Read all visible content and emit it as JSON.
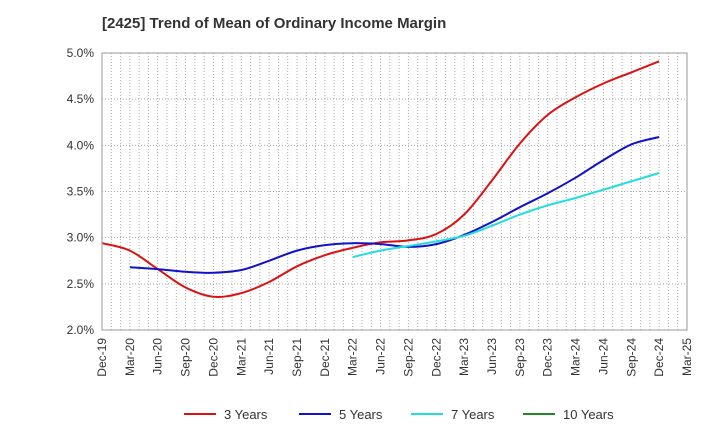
{
  "chart_data": {
    "type": "line",
    "title": "[2425]  Trend of Mean of Ordinary Income Margin",
    "xlabel": "",
    "ylabel": "",
    "categories": [
      "Dec-19",
      "Mar-20",
      "Jun-20",
      "Sep-20",
      "Dec-20",
      "Mar-21",
      "Jun-21",
      "Sep-21",
      "Dec-21",
      "Mar-22",
      "Jun-22",
      "Sep-22",
      "Dec-22",
      "Mar-23",
      "Jun-23",
      "Sep-23",
      "Dec-23",
      "Mar-24",
      "Jun-24",
      "Sep-24",
      "Dec-24",
      "Mar-25"
    ],
    "y_ticks": [
      "2.0%",
      "2.5%",
      "3.0%",
      "3.5%",
      "4.0%",
      "4.5%",
      "5.0%"
    ],
    "ylim": [
      2.0,
      5.0
    ],
    "grid": true,
    "legend_position": "bottom",
    "series": [
      {
        "name": "3 Years",
        "color": "#dd1111",
        "values": [
          2.94,
          2.86,
          2.66,
          2.46,
          2.36,
          2.4,
          2.52,
          2.69,
          2.81,
          2.89,
          2.95,
          2.97,
          3.04,
          3.25,
          3.62,
          4.02,
          4.33,
          4.52,
          4.67,
          4.79,
          4.91,
          null
        ]
      },
      {
        "name": "5 Years",
        "color": "#1111cc",
        "values": [
          null,
          2.68,
          2.66,
          2.63,
          2.62,
          2.65,
          2.75,
          2.86,
          2.92,
          2.94,
          2.93,
          2.9,
          2.93,
          3.03,
          3.17,
          3.33,
          3.48,
          3.65,
          3.84,
          4.01,
          4.09,
          null
        ]
      },
      {
        "name": "7 Years",
        "color": "#22dddd",
        "values": [
          null,
          null,
          null,
          null,
          null,
          null,
          null,
          null,
          null,
          2.79,
          2.86,
          2.91,
          2.96,
          3.02,
          3.13,
          3.25,
          3.35,
          3.43,
          3.52,
          3.61,
          3.7,
          null
        ]
      },
      {
        "name": "10 Years",
        "color": "#228822",
        "values": [
          null,
          null,
          null,
          null,
          null,
          null,
          null,
          null,
          null,
          null,
          null,
          null,
          null,
          null,
          null,
          null,
          null,
          null,
          null,
          null,
          null,
          null
        ]
      }
    ]
  }
}
